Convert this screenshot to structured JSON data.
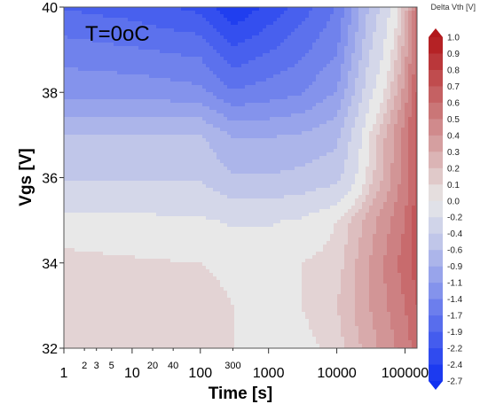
{
  "chart_data": {
    "type": "heatmap",
    "annotation": "T=0oC",
    "xlabel": "Time [s]",
    "ylabel": "Vgs [V]",
    "x_scale": "log",
    "xlim": [
      1,
      150000
    ],
    "ylim": [
      32,
      40
    ],
    "x_ticks_major": [
      {
        "value": 1,
        "label": "1"
      },
      {
        "value": 10,
        "label": "10"
      },
      {
        "value": 100,
        "label": "100"
      },
      {
        "value": 1000,
        "label": "1000"
      },
      {
        "value": 10000,
        "label": "10000"
      },
      {
        "value": 100000,
        "label": "100000"
      }
    ],
    "x_ticks_minor": [
      {
        "value": 2,
        "label": "2"
      },
      {
        "value": 3,
        "label": "3"
      },
      {
        "value": 5,
        "label": "5"
      },
      {
        "value": 20,
        "label": "20"
      },
      {
        "value": 40,
        "label": "40"
      },
      {
        "value": 300,
        "label": "300"
      }
    ],
    "y_ticks": [
      {
        "value": 32,
        "label": "32"
      },
      {
        "value": 34,
        "label": "34"
      },
      {
        "value": 36,
        "label": "36"
      },
      {
        "value": 38,
        "label": "38"
      },
      {
        "value": 40,
        "label": "40"
      }
    ],
    "grid": false,
    "legend_position": "right",
    "colorbar": {
      "title": "Delta Vth [V]",
      "min": -2.7,
      "max": 1.0,
      "labels": [
        "1.0",
        "0.9",
        "0.8",
        "0.7",
        "0.6",
        "0.5",
        "0.4",
        "0.3",
        "0.2",
        "0.1",
        "0.0",
        "-0.2",
        "-0.4",
        "-0.6",
        "-0.9",
        "-1.1",
        "-1.4",
        "-1.7",
        "-1.9",
        "-2.2",
        "-2.4",
        "-2.7"
      ],
      "high_color": "#b2181b",
      "mid_color": "#e8e8e8",
      "low_color": "#1030f0"
    },
    "contour_grid": {
      "vgs": [
        32,
        33,
        34,
        35,
        36,
        37,
        38,
        39,
        40
      ],
      "time": [
        1,
        10,
        100,
        300,
        1000,
        3000,
        10000,
        30000,
        100000,
        150000
      ],
      "delta_vth": [
        [
          0.15,
          0.12,
          0.1,
          0.05,
          -0.05,
          0.0,
          0.1,
          0.3,
          0.5,
          0.6
        ],
        [
          0.15,
          0.12,
          0.1,
          0.05,
          0.0,
          0.05,
          0.15,
          0.35,
          0.55,
          0.65
        ],
        [
          0.1,
          0.07,
          0.05,
          0.02,
          0.02,
          0.05,
          0.1,
          0.35,
          0.6,
          0.7
        ],
        [
          -0.05,
          -0.07,
          -0.1,
          -0.15,
          -0.15,
          -0.1,
          0.05,
          0.3,
          0.55,
          0.7
        ],
        [
          -0.4,
          -0.4,
          -0.4,
          -0.6,
          -0.6,
          -0.55,
          -0.45,
          0.1,
          0.5,
          0.7
        ],
        [
          -0.6,
          -0.6,
          -0.6,
          -0.9,
          -0.9,
          -0.85,
          -0.7,
          0.05,
          0.5,
          0.7
        ],
        [
          -1.2,
          -1.2,
          -1.3,
          -1.6,
          -1.5,
          -1.4,
          -1.1,
          -0.2,
          0.4,
          0.65
        ],
        [
          -1.5,
          -1.6,
          -1.7,
          -2.1,
          -1.9,
          -1.7,
          -1.4,
          -0.4,
          0.3,
          0.6
        ],
        [
          -1.9,
          -2.0,
          -2.2,
          -2.6,
          -2.3,
          -2.0,
          -1.6,
          -0.6,
          0.2,
          0.55
        ]
      ]
    }
  }
}
